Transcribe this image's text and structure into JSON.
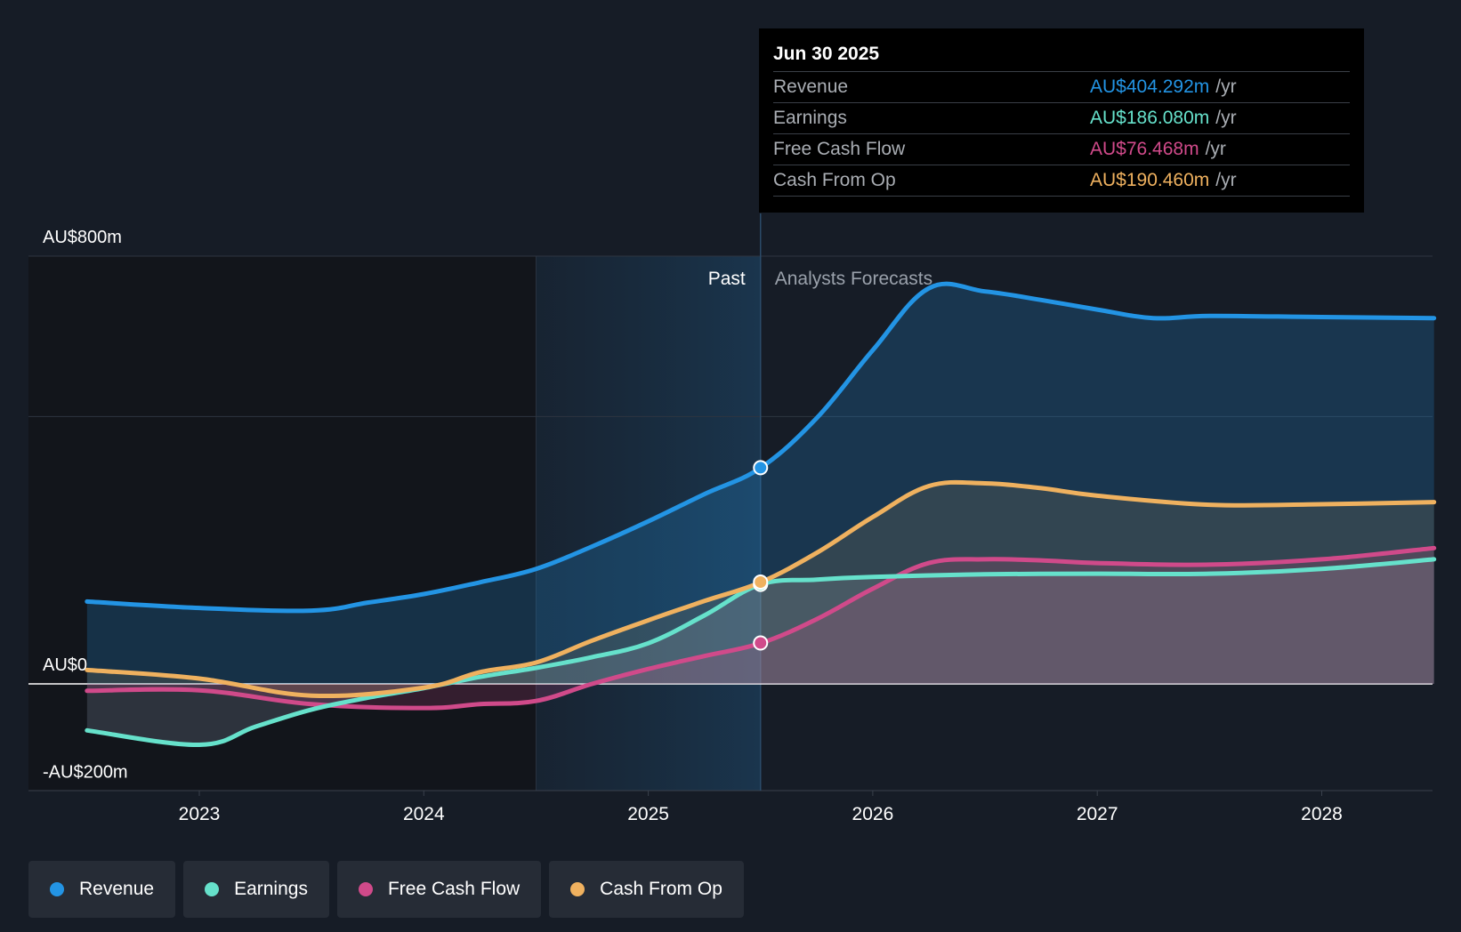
{
  "tooltip": {
    "date": "Jun 30 2025",
    "rows": [
      {
        "label": "Revenue",
        "value": "AU$404.292m",
        "unit": "/yr",
        "color": "#2394e4"
      },
      {
        "label": "Earnings",
        "value": "AU$186.080m",
        "unit": "/yr",
        "color": "#66e1cb"
      },
      {
        "label": "Free Cash Flow",
        "value": "AU$76.468m",
        "unit": "/yr",
        "color": "#d04a8a"
      },
      {
        "label": "Cash From Op",
        "value": "AU$190.460m",
        "unit": "/yr",
        "color": "#efb15f"
      }
    ]
  },
  "legend": [
    {
      "label": "Revenue",
      "color": "#2394e4"
    },
    {
      "label": "Earnings",
      "color": "#66e1cb"
    },
    {
      "label": "Free Cash Flow",
      "color": "#d04a8a"
    },
    {
      "label": "Cash From Op",
      "color": "#efb15f"
    }
  ],
  "chart_data": {
    "type": "line",
    "y_labels": [
      {
        "value": 800,
        "text": "AU$800m"
      },
      {
        "value": 0,
        "text": "AU$0"
      },
      {
        "value": -200,
        "text": "-AU$200m"
      }
    ],
    "ylim": [
      -200,
      800
    ],
    "xlim": [
      2022.5,
      2028.5
    ],
    "x_ticks": [
      {
        "value": 2023,
        "text": "2023"
      },
      {
        "value": 2024,
        "text": "2024"
      },
      {
        "value": 2025,
        "text": "2025"
      },
      {
        "value": 2026,
        "text": "2026"
      },
      {
        "value": 2027,
        "text": "2027"
      },
      {
        "value": 2028,
        "text": "2028"
      }
    ],
    "gridlines": [
      800,
      500
    ],
    "divider": {
      "x": 2025.5,
      "past_label": "Past",
      "forecast_label": "Analysts Forecasts"
    },
    "highlight_start": 2024.5,
    "series": [
      {
        "name": "Revenue",
        "color": "#2394e4",
        "points": [
          [
            2022.5,
            154
          ],
          [
            2023,
            142
          ],
          [
            2023.5,
            137
          ],
          [
            2023.75,
            152
          ],
          [
            2024,
            168
          ],
          [
            2024.25,
            190
          ],
          [
            2024.5,
            215
          ],
          [
            2024.75,
            257
          ],
          [
            2025,
            304
          ],
          [
            2025.25,
            355
          ],
          [
            2025.5,
            404
          ],
          [
            2025.75,
            497
          ],
          [
            2026,
            624
          ],
          [
            2026.25,
            740
          ],
          [
            2026.5,
            734
          ],
          [
            2026.75,
            718
          ],
          [
            2027,
            700
          ],
          [
            2027.25,
            684
          ],
          [
            2027.5,
            688
          ],
          [
            2028,
            686
          ],
          [
            2028.5,
            684
          ]
        ],
        "marker": [
          2025.5,
          404.292
        ]
      },
      {
        "name": "Earnings",
        "color": "#66e1cb",
        "points": [
          [
            2022.5,
            -87
          ],
          [
            2023,
            -114
          ],
          [
            2023.25,
            -80
          ],
          [
            2023.5,
            -48
          ],
          [
            2023.75,
            -26
          ],
          [
            2024,
            -8
          ],
          [
            2024.25,
            13
          ],
          [
            2024.5,
            30
          ],
          [
            2024.75,
            50
          ],
          [
            2025,
            76
          ],
          [
            2025.25,
            128
          ],
          [
            2025.5,
            186
          ],
          [
            2025.75,
            195
          ],
          [
            2026,
            200
          ],
          [
            2026.5,
            205
          ],
          [
            2027,
            206
          ],
          [
            2027.5,
            206
          ],
          [
            2028,
            215
          ],
          [
            2028.5,
            233
          ]
        ],
        "marker": [
          2025.5,
          186.08
        ]
      },
      {
        "name": "Free Cash Flow",
        "color": "#d04a8a",
        "points": [
          [
            2022.5,
            -13
          ],
          [
            2023,
            -12
          ],
          [
            2023.5,
            -38
          ],
          [
            2024,
            -45
          ],
          [
            2024.25,
            -38
          ],
          [
            2024.5,
            -32
          ],
          [
            2024.75,
            0
          ],
          [
            2025,
            28
          ],
          [
            2025.25,
            52
          ],
          [
            2025.5,
            76
          ],
          [
            2025.75,
            121
          ],
          [
            2026,
            178
          ],
          [
            2026.25,
            226
          ],
          [
            2026.5,
            233
          ],
          [
            2026.75,
            231
          ],
          [
            2027,
            226
          ],
          [
            2027.5,
            223
          ],
          [
            2028,
            233
          ],
          [
            2028.5,
            254
          ]
        ],
        "marker": [
          2025.5,
          76.468
        ]
      },
      {
        "name": "Cash From Op",
        "color": "#efb15f",
        "points": [
          [
            2022.5,
            26
          ],
          [
            2023,
            10
          ],
          [
            2023.5,
            -22
          ],
          [
            2024,
            -7
          ],
          [
            2024.25,
            22
          ],
          [
            2024.5,
            40
          ],
          [
            2024.75,
            81
          ],
          [
            2025,
            119
          ],
          [
            2025.25,
            155
          ],
          [
            2025.5,
            190
          ],
          [
            2025.75,
            245
          ],
          [
            2026,
            312
          ],
          [
            2026.25,
            370
          ],
          [
            2026.5,
            375
          ],
          [
            2026.75,
            366
          ],
          [
            2027,
            352
          ],
          [
            2027.5,
            335
          ],
          [
            2028,
            336
          ],
          [
            2028.5,
            340
          ]
        ],
        "marker": [
          2025.5,
          190.46
        ]
      }
    ]
  }
}
